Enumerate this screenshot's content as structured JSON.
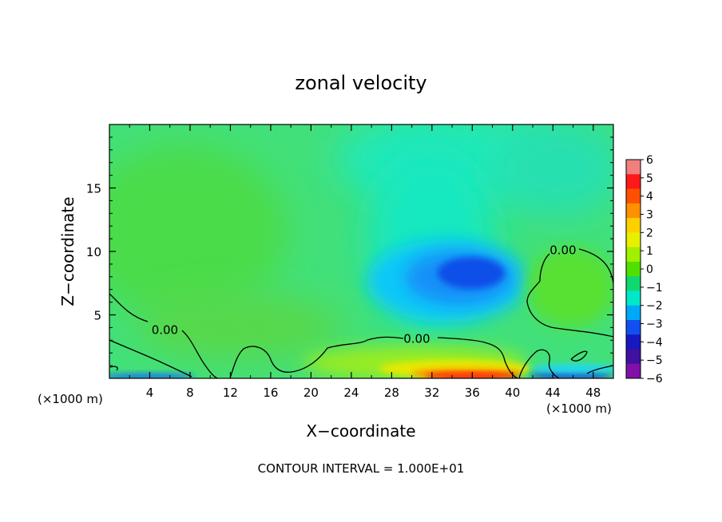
{
  "chart_data": {
    "type": "heatmap",
    "title": "zonal velocity",
    "xlabel": "X−coordinate",
    "ylabel": "Z−coordinate",
    "x_unit_left": "(×1000 m)",
    "x_unit_right": "(×1000 m)",
    "footer": "CONTOUR INTERVAL = 1.000E+01",
    "xlim": [
      0,
      50
    ],
    "ylim": [
      0,
      20
    ],
    "x_ticks": [
      4,
      8,
      12,
      16,
      20,
      24,
      28,
      32,
      36,
      40,
      44,
      48
    ],
    "x_tick_labels": [
      "4",
      "8",
      "12",
      "16",
      "20",
      "24",
      "28",
      "32",
      "36",
      "40",
      "44",
      "48"
    ],
    "y_ticks": [
      5,
      10,
      15
    ],
    "y_tick_labels": [
      "5",
      "10",
      "15"
    ],
    "contour_level": 0,
    "contour_labels": [
      {
        "text": "0.00",
        "x": 5.5,
        "z": 3.8
      },
      {
        "text": "0.00",
        "x": 30.5,
        "z": 3.1
      },
      {
        "text": "0.00",
        "x": 45,
        "z": 10.1
      }
    ],
    "colorbar": {
      "min": -6,
      "max": 6,
      "ticks": [
        6,
        5,
        4,
        3,
        2,
        1,
        0,
        -1,
        -2,
        -3,
        -4,
        -5,
        -6
      ],
      "tick_labels": [
        "6",
        "5",
        "4",
        "3",
        "2",
        "1",
        "0",
        "−1",
        "−2",
        "−3",
        "−4",
        "−5",
        "−6"
      ],
      "colors": [
        "#f08080",
        "#ff1818",
        "#ff5000",
        "#ff9000",
        "#ffd000",
        "#e8f000",
        "#a0f000",
        "#50e000",
        "#10d870",
        "#00e8c8",
        "#00a8f8",
        "#1050f0",
        "#1818c0",
        "#4010a0",
        "#8010a8"
      ]
    },
    "features": [
      {
        "name": "background",
        "x": 25,
        "z": 10,
        "value": 0.2
      },
      {
        "name": "blue-core",
        "x": 34.5,
        "z": 8.2,
        "value": -3.8
      },
      {
        "name": "cyan-upper-tongue",
        "x": 33,
        "z": 17,
        "value": -1.4
      },
      {
        "name": "green-bottom-right",
        "x": 45,
        "z": 6.5,
        "value": 0.8
      },
      {
        "name": "surface-jet-red",
        "x": 36,
        "z": 0.2,
        "value": 5.5
      },
      {
        "name": "surface-blue-left",
        "x": 3,
        "z": 0.2,
        "value": -3
      },
      {
        "name": "surface-blue-right",
        "x": 46,
        "z": 0.2,
        "value": -3.5
      }
    ]
  }
}
